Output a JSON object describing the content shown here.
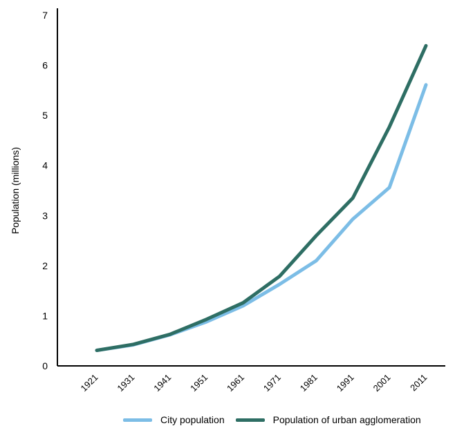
{
  "chart_data": {
    "type": "line",
    "title": "",
    "xlabel": "",
    "ylabel": "Population (millions)",
    "ylim": [
      0,
      7
    ],
    "yticks": [
      0,
      1,
      2,
      3,
      4,
      5,
      6,
      7
    ],
    "categories": [
      "1921",
      "1931",
      "1941",
      "1951",
      "1961",
      "1971",
      "1981",
      "1991",
      "2001",
      "2011"
    ],
    "series": [
      {
        "name": "City population",
        "color": "#7cbde6",
        "values": [
          0.31,
          0.42,
          0.62,
          0.88,
          1.2,
          1.63,
          2.1,
          2.93,
          3.56,
          5.61
        ]
      },
      {
        "name": "Population of urban agglomeration",
        "color": "#2e6e64",
        "values": [
          0.31,
          0.43,
          0.63,
          0.93,
          1.26,
          1.79,
          2.6,
          3.35,
          4.77,
          6.39
        ]
      }
    ],
    "grid": false,
    "legend_position": "bottom"
  }
}
